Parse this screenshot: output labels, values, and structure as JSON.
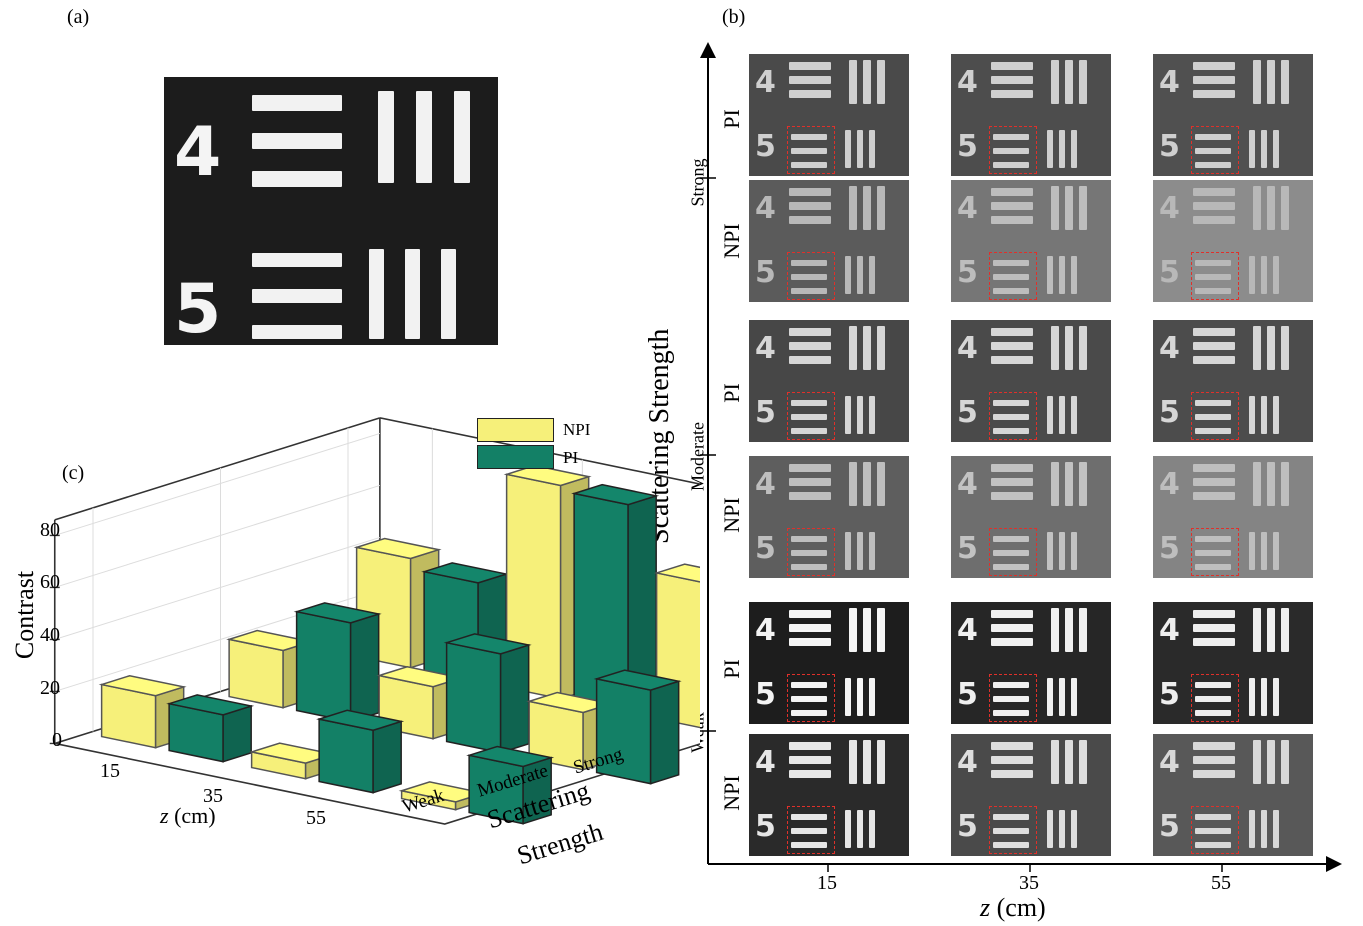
{
  "panels": {
    "a": "(a)",
    "b": "(b)",
    "c": "(c)"
  },
  "target": {
    "digit_top": "4",
    "digit_bottom": "5"
  },
  "panel_b": {
    "y_axis_title": "Scattering Strength",
    "groups": [
      "Strong",
      "Moderate",
      "Weak"
    ],
    "row_labels": [
      "PI",
      "NPI"
    ],
    "x_ticks": [
      "15",
      "35",
      "55"
    ],
    "x_axis_title_var": "z",
    "x_axis_title_unit": "(cm)"
  },
  "panel_c_labels": {
    "legend": [
      "NPI",
      "PI"
    ],
    "y_axis_title": "Contrast",
    "y_ticks": [
      "0",
      "20",
      "40",
      "60",
      "80"
    ],
    "z_ticks": [
      "15",
      "35",
      "55"
    ],
    "z_title_var": "z",
    "z_title_unit": "(cm)",
    "s_ticks": [
      "Weak",
      "Moderate",
      "Strong"
    ],
    "s_title_line1": "Scattering",
    "s_title_line2": "Strength"
  },
  "colors": {
    "npi": "#f6f07a",
    "pi": "#138066"
  },
  "chart_data": {
    "type": "bar",
    "categories": [
      "15",
      "35",
      "55"
    ],
    "z_values": [
      "15",
      "35",
      "55"
    ],
    "scattering": [
      "Weak",
      "Moderate",
      "Strong"
    ],
    "xlabel": "z (cm)",
    "ylabel": "Contrast",
    "zlabel": "Scattering Strength",
    "ylim": [
      0,
      80
    ],
    "series": [
      {
        "name": "NPI",
        "values": {
          "Weak": [
            20,
            6,
            3
          ],
          "Moderate": [
            22,
            20,
            22
          ],
          "Strong": [
            42,
            82,
            56
          ]
        }
      },
      {
        "name": "PI",
        "values": {
          "Weak": [
            18,
            24,
            22
          ],
          "Moderate": [
            38,
            38,
            36
          ],
          "Strong": [
            38,
            80,
            72
          ]
        }
      }
    ]
  }
}
